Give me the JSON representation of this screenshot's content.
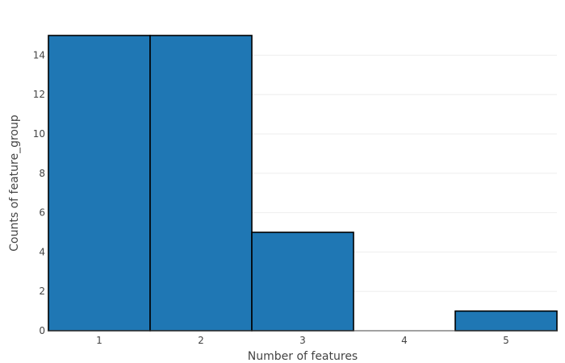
{
  "chart_data": {
    "type": "bar",
    "categories": [
      "1",
      "2",
      "3",
      "4",
      "5"
    ],
    "values": [
      15,
      15,
      5,
      0,
      1
    ],
    "xlabel": "Number of features",
    "ylabel": "Counts of feature_group",
    "ylim": [
      0,
      15
    ],
    "yticks": [
      0,
      2,
      4,
      6,
      8,
      10,
      12,
      14
    ],
    "grid": "horizontal",
    "bar_color": "#1f77b4",
    "bar_outline_color": "#000000"
  }
}
